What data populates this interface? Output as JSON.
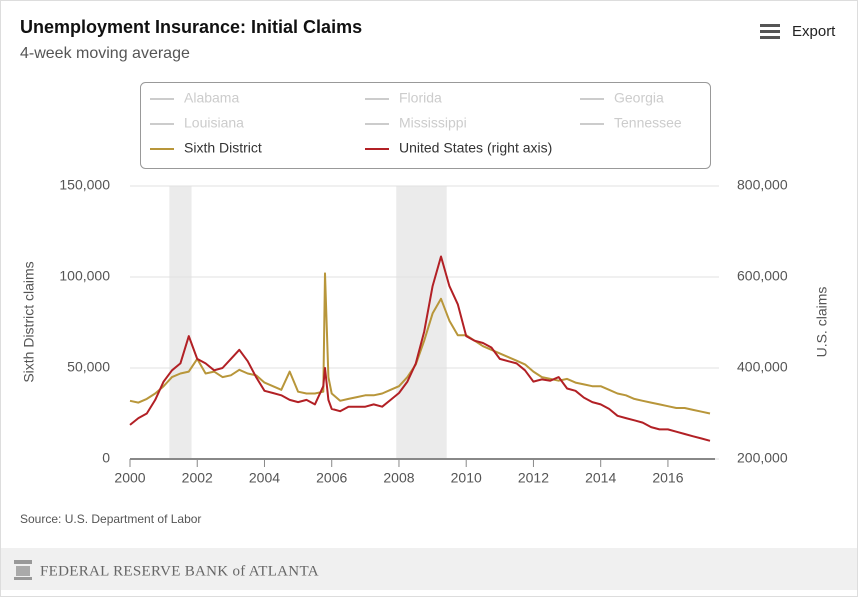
{
  "chart_data": {
    "type": "line",
    "title": "Unemployment Insurance: Initial Claims",
    "subtitle": "4-week moving average",
    "export_label": "Export",
    "y_label": "Sixth District claims",
    "y2_label": "U.S. claims",
    "source": "Source: U.S. Department of Labor",
    "footer": "FEDERAL RESERVE BANK of ATLANTA",
    "inactive_series": [
      "Alabama",
      "Florida",
      "Georgia",
      "Louisiana",
      "Mississippi",
      "Tennessee"
    ],
    "inactive_color": "#cccccc",
    "shaded_regions": [
      [
        2001.17,
        2001.83
      ],
      [
        2007.92,
        2009.42
      ]
    ],
    "shade_color": "#ebebeb",
    "x": [
      2000,
      2000.25,
      2000.5,
      2000.75,
      2001,
      2001.25,
      2001.5,
      2001.75,
      2002,
      2002.25,
      2002.5,
      2002.75,
      2003,
      2003.25,
      2003.5,
      2003.75,
      2004,
      2004.25,
      2004.5,
      2004.75,
      2005,
      2005.25,
      2005.5,
      2005.75,
      2005.8,
      2005.9,
      2006,
      2006.25,
      2006.5,
      2006.75,
      2007,
      2007.25,
      2007.5,
      2007.75,
      2008,
      2008.25,
      2008.5,
      2008.75,
      2009,
      2009.25,
      2009.5,
      2009.75,
      2010,
      2010.25,
      2010.5,
      2010.75,
      2011,
      2011.25,
      2011.5,
      2011.75,
      2012,
      2012.25,
      2012.5,
      2012.75,
      2013,
      2013.25,
      2013.5,
      2013.75,
      2014,
      2014.25,
      2014.5,
      2014.75,
      2015,
      2015.25,
      2015.5,
      2015.75,
      2016,
      2016.25,
      2016.5,
      2016.75,
      2017,
      2017.25
    ],
    "series": [
      {
        "name": "Sixth District",
        "color": "#b8963a",
        "axis": "y",
        "values": [
          32000,
          31000,
          33000,
          36000,
          40000,
          45000,
          47000,
          48000,
          55000,
          47000,
          48000,
          45000,
          46000,
          49000,
          47000,
          46000,
          42000,
          40000,
          38000,
          48000,
          37000,
          36000,
          36000,
          37000,
          102000,
          45000,
          36000,
          32000,
          33000,
          34000,
          35000,
          35000,
          36000,
          38000,
          40000,
          45000,
          52000,
          65000,
          80000,
          88000,
          76000,
          68000,
          68000,
          65000,
          62000,
          60000,
          58000,
          56000,
          54000,
          52000,
          48000,
          45000,
          44000,
          43000,
          44000,
          42000,
          41000,
          40000,
          40000,
          38000,
          36000,
          35000,
          33000,
          32000,
          31000,
          30000,
          29000,
          28000,
          28000,
          27000,
          26000,
          25000
        ]
      },
      {
        "name": "United States (right axis)",
        "color": "#b22025",
        "axis": "y2",
        "values": [
          275000,
          290000,
          300000,
          330000,
          370000,
          395000,
          410000,
          470000,
          420000,
          410000,
          395000,
          400000,
          420000,
          440000,
          415000,
          380000,
          350000,
          345000,
          340000,
          330000,
          325000,
          330000,
          320000,
          360000,
          400000,
          330000,
          310000,
          305000,
          315000,
          315000,
          315000,
          320000,
          315000,
          330000,
          345000,
          370000,
          410000,
          480000,
          580000,
          645000,
          580000,
          540000,
          470000,
          460000,
          455000,
          445000,
          420000,
          415000,
          410000,
          395000,
          370000,
          375000,
          372000,
          380000,
          355000,
          350000,
          335000,
          325000,
          320000,
          310000,
          295000,
          290000,
          285000,
          280000,
          270000,
          265000,
          265000,
          260000,
          255000,
          250000,
          245000,
          240000
        ]
      }
    ],
    "xlim": [
      2000,
      2017.4
    ],
    "xticks": [
      2000,
      2002,
      2004,
      2006,
      2008,
      2010,
      2012,
      2014,
      2016
    ],
    "ylim": [
      0,
      150000
    ],
    "yticks": [
      0,
      {
        "value": 50000,
        "label": "50,000"
      },
      {
        "value": 100000,
        "label": "100,000"
      },
      {
        "value": 150000,
        "label": "150,000"
      }
    ],
    "y2lim": [
      200000,
      800000
    ],
    "y2ticks": [
      {
        "value": 200000,
        "label": "200,000"
      },
      {
        "value": 400000,
        "label": "400,000"
      },
      {
        "value": 600000,
        "label": "600,000"
      },
      {
        "value": 800000,
        "label": "800,000"
      }
    ],
    "grid": true
  }
}
